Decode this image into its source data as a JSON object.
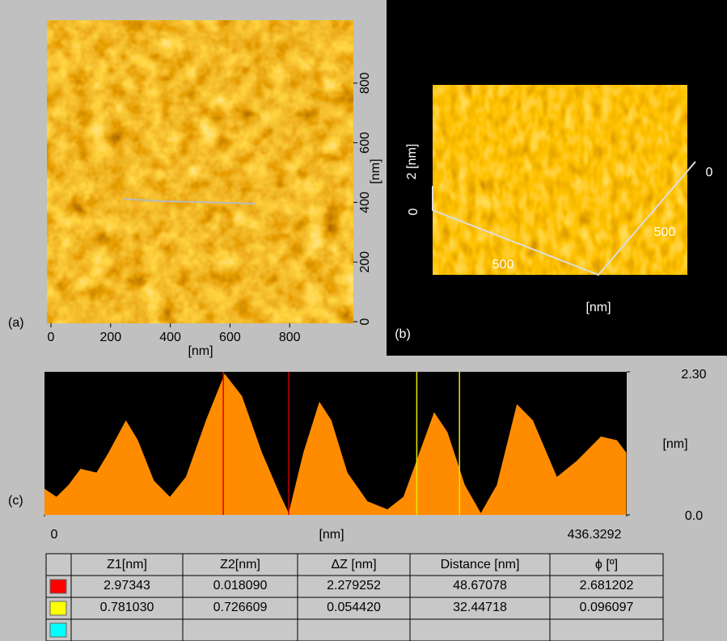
{
  "panel_a": {
    "label": "(a)",
    "xlabel": "[nm]",
    "ylabel": "[nm]",
    "xlim": [
      0,
      1000
    ],
    "ylim": [
      0,
      1000
    ],
    "xticks": [
      0,
      200,
      400,
      600,
      800
    ],
    "yticks": [
      0,
      200,
      400,
      600,
      800
    ]
  },
  "panel_b": {
    "label": "(b)",
    "z_label": "2 [nm]",
    "z_zero": "0",
    "depth_zero": "0",
    "depth_tick": "500",
    "width_tick": "500",
    "axis_label": "[nm]"
  },
  "chart_data": {
    "type": "area",
    "label": "(c)",
    "xlabel": "[nm]",
    "ylabel": "[nm]",
    "color": "#ff8c00",
    "xlim": [
      0,
      436.3292
    ],
    "ylim": [
      0,
      2.3
    ],
    "xticks": [
      0,
      436.3292
    ],
    "yticks": [
      {
        "value": 0,
        "label": "0.0"
      },
      {
        "value": 2.3,
        "label": "2.30"
      }
    ],
    "x": [
      0,
      9,
      18,
      27,
      39,
      48,
      61,
      70,
      82,
      94,
      106,
      121,
      135,
      148,
      163,
      176,
      183,
      194,
      206,
      215,
      227,
      242,
      257,
      269,
      281,
      292,
      302,
      315,
      327,
      339,
      354,
      366,
      384,
      399,
      417,
      429,
      436
    ],
    "values": [
      0.42,
      0.29,
      0.48,
      0.74,
      0.68,
      1.0,
      1.52,
      1.2,
      0.55,
      0.29,
      0.61,
      1.52,
      2.27,
      1.91,
      1.0,
      0.35,
      0.03,
      1.0,
      1.82,
      1.52,
      0.68,
      0.22,
      0.09,
      0.29,
      1.0,
      1.65,
      1.33,
      0.48,
      0.03,
      0.48,
      1.78,
      1.52,
      0.61,
      0.87,
      1.26,
      1.2,
      1.0
    ],
    "cursors": {
      "x": [
        134,
        183,
        279,
        311
      ],
      "colors": [
        "#e00000",
        "#c00000",
        "#e8e800",
        "#e8e800"
      ]
    }
  },
  "table": {
    "header": [
      "Z1[nm]",
      "Z2[nm]",
      "ΔZ [nm]",
      "Distance [nm]",
      "ϕ [º]"
    ],
    "swatches": [
      "#ff0000",
      "#ffff00",
      "#00ffff"
    ],
    "rows": [
      [
        "2.97343",
        "0.018090",
        "2.279252",
        "48.67078",
        "2.681202"
      ],
      [
        "0.781030",
        "0.726609",
        "0.054420",
        "32.44718",
        "0.096097"
      ]
    ]
  }
}
